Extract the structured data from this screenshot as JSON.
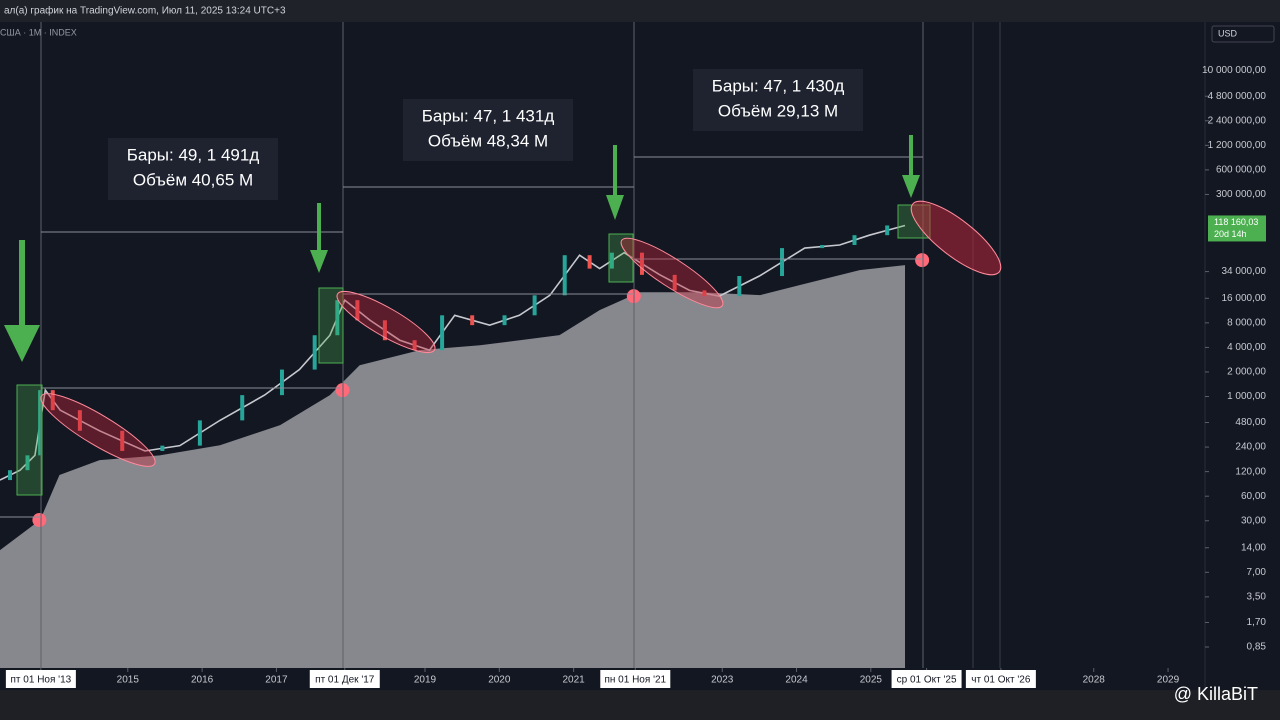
{
  "header": "ал(а) график на TradingView.com, Июл 11, 2025 13:24 UTC+3",
  "symbol": "США · 1M · INDEX",
  "currency": "USD",
  "last_price": {
    "value": 118160.03,
    "label": "118 160,03"
  },
  "countdown": "20d 14h",
  "watermark": "@ KillaBiT",
  "annotations": [
    {
      "lines": [
        "Бары: 49, 1 491д",
        "Объём 40,65 M"
      ]
    },
    {
      "lines": [
        "Бары: 47, 1 431д",
        "Объём 48,34 M"
      ]
    },
    {
      "lines": [
        "Бары: 47, 1 430д",
        "Объём 29,13 M"
      ]
    }
  ],
  "chart_data": {
    "type": "line",
    "log_y": true,
    "xlim": [
      2013.28,
      2029.43
    ],
    "ylim": [
      0.47,
      39000000
    ],
    "xticks": [
      {
        "value": 2013.83,
        "label": "пт 01 Ноя '13"
      },
      2015,
      2016,
      2017,
      {
        "value": 2017.92,
        "label": "пт 01 Дек '17"
      },
      2019,
      2020,
      2021,
      {
        "value": 2021.83,
        "label": "пн 01 Ноя '21"
      },
      2023,
      2024,
      2025,
      {
        "value": 2025.75,
        "label": "ср 01 Окт '25"
      },
      {
        "value": 2026.75,
        "label": "чт 01 Окт '26"
      },
      2028,
      2029
    ],
    "yticks": [
      {
        "value": 10000000,
        "label": "10 000 000,00"
      },
      {
        "value": 4800000,
        "label": "4 800 000,00"
      },
      {
        "value": 2400000,
        "label": "2 400 000,00"
      },
      {
        "value": 1200000,
        "label": "1 200 000,00"
      },
      {
        "value": 600000,
        "label": "600 000,00"
      },
      {
        "value": 300000,
        "label": "300 000,00"
      },
      {
        "value": 34000,
        "label": "34 000,00"
      },
      {
        "value": 16000,
        "label": "16 000,00"
      },
      {
        "value": 8000,
        "label": "8 000,00"
      },
      {
        "value": 4000,
        "label": "4 000,00"
      },
      {
        "value": 2000,
        "label": "2 000,00"
      },
      {
        "value": 1000,
        "label": "1 000,00"
      },
      {
        "value": 480,
        "label": "480,00"
      },
      {
        "value": 240,
        "label": "240,00"
      },
      {
        "value": 120,
        "label": "120,00"
      },
      {
        "value": 60,
        "label": "60,00"
      },
      {
        "value": 30,
        "label": "30,00"
      },
      {
        "value": 14,
        "label": "14,00"
      },
      {
        "value": 7,
        "label": "7,00"
      },
      {
        "value": 3.5,
        "label": "3,50"
      },
      {
        "value": 1.7,
        "label": "1,70"
      },
      {
        "value": 0.85,
        "label": "0,85"
      }
    ],
    "series": [
      {
        "kind": "area",
        "color": "#8d8d95",
        "x": [
          2013.28,
          2013.82,
          2014.08,
          2014.62,
          2015.43,
          2016.24,
          2017.05,
          2017.72,
          2018.12,
          2018.93,
          2019.74,
          2020.81,
          2021.35,
          2021.89,
          2022.7,
          2023.51,
          2024.04,
          2024.85,
          2025.46
        ],
        "values": [
          13.1,
          30.6,
          109,
          166,
          190,
          253,
          446,
          1040,
          2420,
          3700,
          4250,
          5650,
          11450,
          19000,
          19000,
          17500,
          23200,
          35400,
          40800
        ]
      },
      {
        "kind": "line",
        "color": "#c7c9cf",
        "x": [
          2013.28,
          2013.55,
          2013.75,
          2013.89,
          2014.09,
          2014.62,
          2015.23,
          2015.7,
          2016.24,
          2016.84,
          2017.31,
          2017.72,
          2017.92,
          2018.26,
          2018.66,
          2019.06,
          2019.4,
          2019.87,
          2020.27,
          2020.68,
          2021.08,
          2021.35,
          2021.68,
          2022.16,
          2022.56,
          2022.96,
          2023.5,
          2024.11,
          2024.58,
          2024.98,
          2025.46
        ],
        "values": [
          94.6,
          125,
          190,
          1196,
          680,
          380,
          215,
          250,
          510,
          1040,
          2140,
          5640,
          15170,
          8600,
          4900,
          3700,
          9900,
          7500,
          9900,
          17400,
          54000,
          37000,
          58000,
          31000,
          20000,
          17000,
          30000,
          66000,
          72000,
          95000,
          125000
        ]
      },
      {
        "kind": "dots",
        "color": "#ff6b7a",
        "x": [
          2013.81,
          2017.89,
          2021.81,
          2025.69
        ],
        "values": [
          30.6,
          1196,
          17000,
          47000
        ]
      }
    ]
  }
}
